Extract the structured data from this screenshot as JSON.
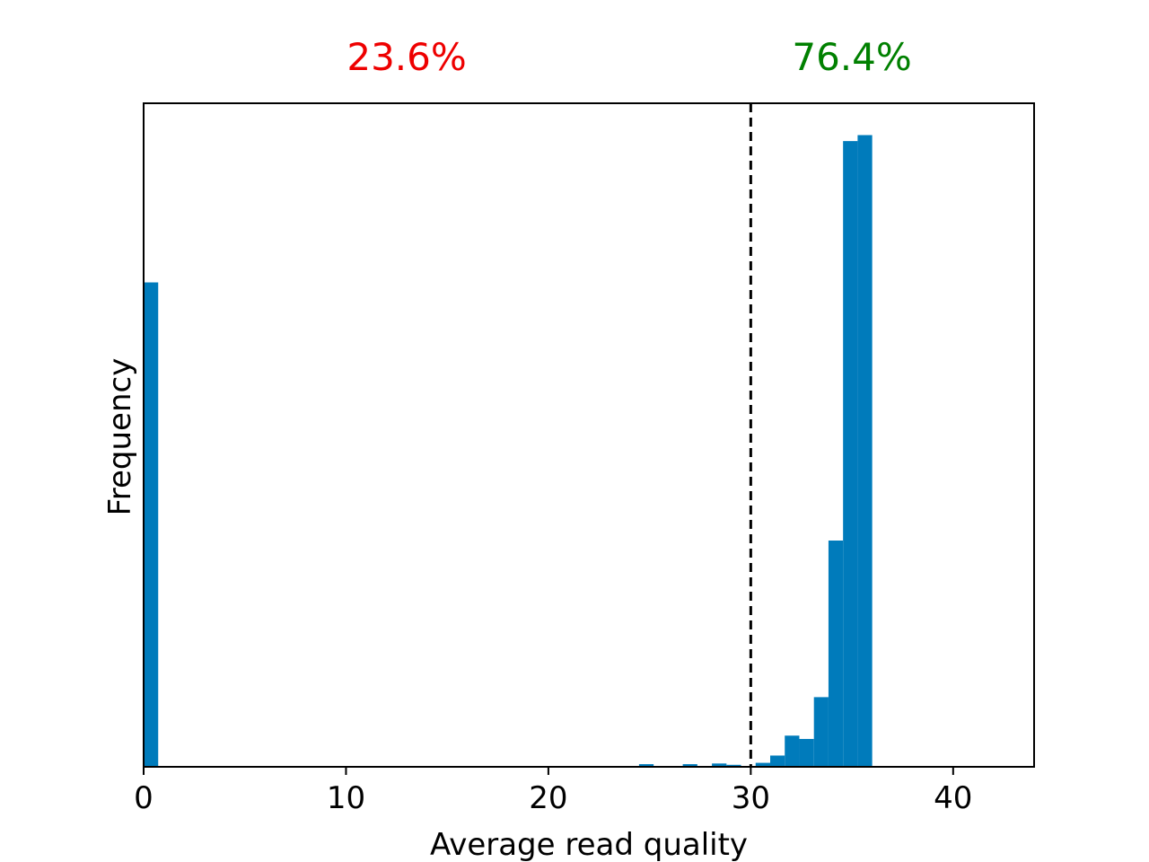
{
  "chart_data": {
    "type": "bar",
    "xlabel": "Average read quality",
    "ylabel": "Frequency",
    "xlim": [
      0,
      44
    ],
    "ylim": [
      0,
      1.0
    ],
    "xticks": [
      0,
      10,
      20,
      30,
      40
    ],
    "yticks_shown": false,
    "grid": false,
    "bar_color": "#007bbb",
    "bin_width": 0.72,
    "bins": [
      {
        "x": 0.0,
        "value": 0.73
      },
      {
        "x": 24.48,
        "value": 0.004
      },
      {
        "x": 25.2,
        "value": 0.001
      },
      {
        "x": 26.64,
        "value": 0.004
      },
      {
        "x": 28.08,
        "value": 0.005
      },
      {
        "x": 28.8,
        "value": 0.003
      },
      {
        "x": 30.24,
        "value": 0.006
      },
      {
        "x": 30.96,
        "value": 0.017
      },
      {
        "x": 31.68,
        "value": 0.047
      },
      {
        "x": 32.4,
        "value": 0.042
      },
      {
        "x": 33.12,
        "value": 0.105
      },
      {
        "x": 33.84,
        "value": 0.341
      },
      {
        "x": 34.56,
        "value": 0.943
      },
      {
        "x": 35.28,
        "value": 0.952
      }
    ],
    "threshold": {
      "x": 30,
      "style": "dashed",
      "color": "#000000"
    },
    "annotations": [
      {
        "text": "23.6%",
        "x": 13,
        "color": "#ee0000"
      },
      {
        "text": "76.4%",
        "x": 35,
        "color": "#008000"
      }
    ]
  }
}
